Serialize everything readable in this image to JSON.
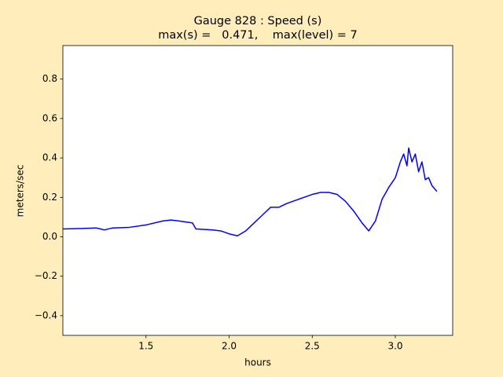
{
  "chart_data": {
    "type": "line",
    "title": "Gauge 828 : Speed (s)",
    "subtitle": "max(s) =   0.471,    max(level) = 7",
    "x_label": "hours",
    "y_label": "meters/sec",
    "x": [
      1.0,
      1.1,
      1.2,
      1.25,
      1.3,
      1.4,
      1.5,
      1.6,
      1.65,
      1.7,
      1.78,
      1.8,
      1.9,
      1.95,
      2.0,
      2.05,
      2.1,
      2.15,
      2.2,
      2.25,
      2.3,
      2.35,
      2.4,
      2.45,
      2.5,
      2.55,
      2.6,
      2.65,
      2.7,
      2.75,
      2.8,
      2.84,
      2.88,
      2.92,
      2.96,
      3.0,
      3.03,
      3.05,
      3.07,
      3.08,
      3.1,
      3.12,
      3.14,
      3.16,
      3.18,
      3.2,
      3.22,
      3.25
    ],
    "series": [
      {
        "color": "#0000ff",
        "values": [
          0.04,
          0.042,
          0.045,
          0.035,
          0.045,
          0.048,
          0.06,
          0.08,
          0.085,
          0.08,
          0.07,
          0.04,
          0.035,
          0.03,
          0.015,
          0.005,
          0.03,
          0.07,
          0.11,
          0.15,
          0.15,
          0.17,
          0.185,
          0.2,
          0.215,
          0.225,
          0.225,
          0.215,
          0.18,
          0.13,
          0.07,
          0.03,
          0.08,
          0.19,
          0.25,
          0.3,
          0.38,
          0.42,
          0.36,
          0.45,
          0.38,
          0.42,
          0.33,
          0.38,
          0.29,
          0.3,
          0.26,
          0.23
        ]
      }
    ],
    "xlim": [
      1.0,
      3.345
    ],
    "ylim": [
      -0.5,
      0.97
    ],
    "xticks": [
      1.5,
      {
        "value": 2,
        "label": "2.0"
      },
      2.5,
      {
        "value": 3,
        "label": "3.0"
      }
    ],
    "yticks": [
      {
        "value": -0.4,
        "label": "−0.4"
      },
      {
        "value": -0.2,
        "label": "−0.2"
      },
      {
        "value": 0,
        "label": "0.0"
      },
      0.2,
      0.4,
      0.6,
      0.8
    ]
  }
}
